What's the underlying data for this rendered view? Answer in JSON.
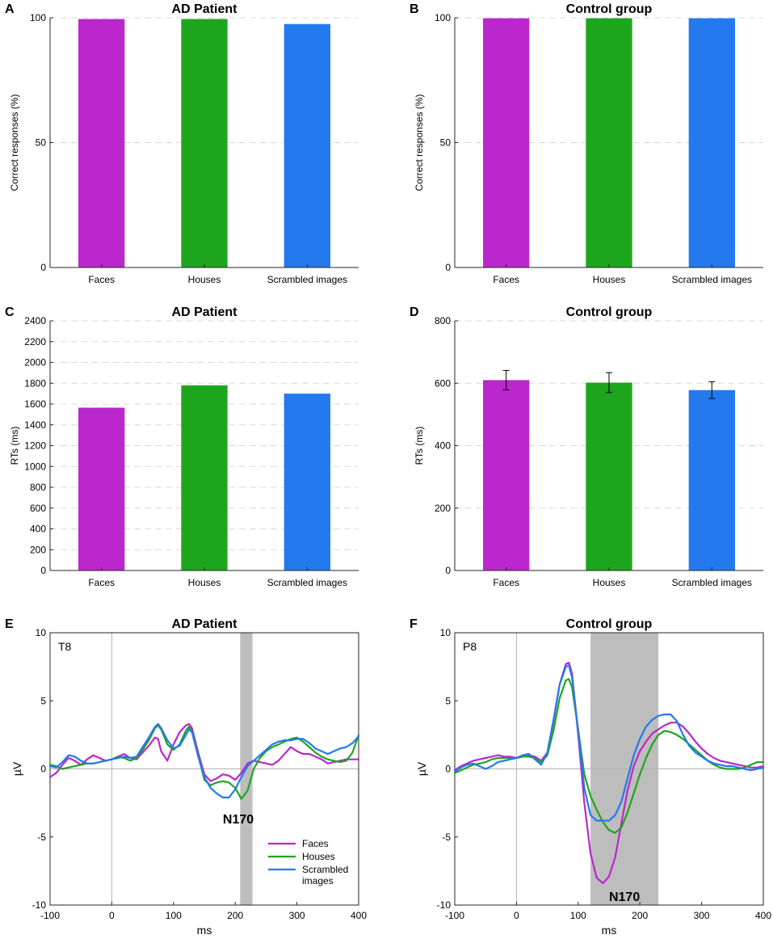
{
  "colors": {
    "faces": "#bb27cc",
    "houses": "#1ea51e",
    "scrambled": "#2479ef",
    "shade": "#bdbdbd"
  },
  "chart_data": [
    {
      "id": "A",
      "type": "bar",
      "letter": "A",
      "title": "AD Patient",
      "ylabel": "Correct responses (%)",
      "xlabel": "",
      "ylim": [
        0,
        100
      ],
      "yticks": [
        0,
        50,
        100
      ],
      "categories": [
        "Faces",
        "Houses",
        "Scrambled images"
      ],
      "values": [
        99.5,
        99.5,
        97.5
      ],
      "grid": true
    },
    {
      "id": "B",
      "type": "bar",
      "letter": "B",
      "title": "Control group",
      "ylabel": "Correct responses (%)",
      "xlabel": "",
      "ylim": [
        0,
        100
      ],
      "yticks": [
        0,
        50,
        100
      ],
      "categories": [
        "Faces",
        "Houses",
        "Scrambled images"
      ],
      "values": [
        99.8,
        99.8,
        99.8
      ],
      "grid": true
    },
    {
      "id": "C",
      "type": "bar",
      "letter": "C",
      "title": "AD Patient",
      "ylabel": "RTs (ms)",
      "xlabel": "",
      "ylim": [
        0,
        2400
      ],
      "yticks": [
        0,
        200,
        400,
        600,
        800,
        1000,
        1200,
        1400,
        1600,
        1800,
        2000,
        2200,
        2400
      ],
      "categories": [
        "Faces",
        "Houses",
        "Scrambled images"
      ],
      "values": [
        1565,
        1780,
        1700
      ],
      "grid": true
    },
    {
      "id": "D",
      "type": "bar",
      "letter": "D",
      "title": "Control group",
      "ylabel": "RTs (ms)",
      "xlabel": "",
      "ylim": [
        0,
        800
      ],
      "yticks": [
        0,
        200,
        400,
        600,
        800
      ],
      "categories": [
        "Faces",
        "Houses",
        "Scrambled images"
      ],
      "values": [
        610,
        602,
        578
      ],
      "errors": [
        31,
        32,
        27
      ],
      "grid": true
    },
    {
      "id": "E",
      "type": "line",
      "letter": "E",
      "title": "AD Patient",
      "channel": "T8",
      "annotation": "N170",
      "xlabel": "ms",
      "ylabel": "µV",
      "xlim": [
        -100,
        400
      ],
      "ylim": [
        -10,
        10
      ],
      "xticks": [
        -100,
        0,
        100,
        200,
        300,
        400
      ],
      "yticks": [
        -10,
        -5,
        0,
        5,
        10
      ],
      "shade": [
        208,
        228
      ],
      "legend": {
        "position": "bottom-center",
        "labels": {
          "faces": "Faces",
          "houses": "Houses",
          "scrambled_line1": "Scrambled",
          "scrambled_line2": "images"
        }
      },
      "series": [
        {
          "name": "Faces",
          "key": "faces",
          "x": [
            -100,
            -90,
            -80,
            -70,
            -60,
            -50,
            -40,
            -30,
            -20,
            -10,
            0,
            10,
            20,
            30,
            40,
            50,
            60,
            70,
            75,
            80,
            90,
            100,
            110,
            120,
            125,
            130,
            140,
            150,
            160,
            170,
            180,
            190,
            200,
            210,
            220,
            230,
            240,
            250,
            260,
            270,
            280,
            290,
            300,
            310,
            320,
            330,
            340,
            350,
            360,
            370,
            380,
            390,
            400
          ],
          "y": [
            -0.6,
            -0.3,
            0.3,
            0.8,
            0.6,
            0.3,
            0.7,
            1.0,
            0.8,
            0.6,
            0.7,
            0.9,
            1.1,
            0.8,
            0.7,
            1.2,
            1.7,
            2.3,
            2.2,
            1.3,
            0.6,
            1.8,
            2.7,
            3.2,
            3.3,
            3.0,
            1.2,
            -0.4,
            -0.9,
            -0.7,
            -0.4,
            -0.5,
            -0.8,
            -0.3,
            0.4,
            0.6,
            0.5,
            0.4,
            0.3,
            0.6,
            1.1,
            1.6,
            1.3,
            1.1,
            1.1,
            0.9,
            0.7,
            0.4,
            0.5,
            0.6,
            0.7,
            0.7,
            0.7
          ]
        },
        {
          "name": "Houses",
          "key": "houses",
          "x": [
            -100,
            -90,
            -80,
            -70,
            -60,
            -50,
            -40,
            -30,
            -20,
            -10,
            0,
            10,
            20,
            30,
            40,
            50,
            60,
            70,
            75,
            80,
            90,
            100,
            110,
            120,
            125,
            130,
            140,
            150,
            160,
            170,
            180,
            190,
            200,
            210,
            220,
            230,
            240,
            250,
            260,
            270,
            280,
            290,
            300,
            310,
            320,
            330,
            340,
            350,
            360,
            370,
            380,
            390,
            400
          ],
          "y": [
            0.3,
            0.2,
            0.0,
            0.1,
            0.2,
            0.3,
            0.4,
            0.4,
            0.5,
            0.6,
            0.7,
            0.9,
            0.8,
            0.6,
            0.8,
            1.4,
            2.1,
            3.0,
            3.2,
            2.9,
            1.8,
            1.4,
            1.8,
            2.8,
            3.1,
            2.8,
            1.0,
            -0.8,
            -1.2,
            -1.0,
            -0.9,
            -1.0,
            -1.4,
            -2.2,
            -1.6,
            0.0,
            0.8,
            1.3,
            1.6,
            1.8,
            2.0,
            2.2,
            2.3,
            2.0,
            1.6,
            1.2,
            0.9,
            0.7,
            0.6,
            0.5,
            0.6,
            1.2,
            2.5
          ]
        },
        {
          "name": "Scrambled images",
          "key": "scrambled",
          "x": [
            -100,
            -90,
            -80,
            -70,
            -60,
            -50,
            -40,
            -30,
            -20,
            -10,
            0,
            10,
            20,
            30,
            40,
            50,
            60,
            70,
            75,
            80,
            90,
            100,
            110,
            120,
            125,
            130,
            140,
            150,
            160,
            170,
            180,
            190,
            200,
            210,
            220,
            230,
            240,
            250,
            260,
            270,
            280,
            290,
            300,
            310,
            320,
            330,
            340,
            350,
            360,
            370,
            380,
            390,
            400
          ],
          "y": [
            0.2,
            0.1,
            0.5,
            1.0,
            0.9,
            0.6,
            0.4,
            0.4,
            0.5,
            0.6,
            0.7,
            0.8,
            0.9,
            0.8,
            0.9,
            1.6,
            2.3,
            3.1,
            3.3,
            3.0,
            2.1,
            1.5,
            1.7,
            2.5,
            2.9,
            2.7,
            0.9,
            -0.6,
            -1.4,
            -1.8,
            -2.1,
            -2.1,
            -1.5,
            -0.6,
            0.2,
            0.6,
            1.0,
            1.4,
            1.8,
            2.0,
            2.1,
            2.1,
            2.2,
            2.2,
            1.9,
            1.5,
            1.3,
            1.1,
            1.3,
            1.5,
            1.6,
            1.9,
            2.4
          ]
        }
      ]
    },
    {
      "id": "F",
      "type": "line",
      "letter": "F",
      "title": "Control group",
      "channel": "P8",
      "annotation": "N170",
      "xlabel": "ms",
      "ylabel": "µV",
      "xlim": [
        -100,
        400
      ],
      "ylim": [
        -10,
        10
      ],
      "xticks": [
        -100,
        0,
        100,
        200,
        300,
        400
      ],
      "yticks": [
        -10,
        -5,
        0,
        5,
        10
      ],
      "shade": [
        120,
        230
      ],
      "series": [
        {
          "name": "Faces",
          "key": "faces",
          "x": [
            -100,
            -90,
            -80,
            -70,
            -60,
            -50,
            -40,
            -30,
            -20,
            -10,
            0,
            10,
            20,
            30,
            40,
            50,
            60,
            70,
            80,
            85,
            90,
            100,
            110,
            120,
            130,
            140,
            150,
            160,
            170,
            180,
            190,
            200,
            210,
            220,
            230,
            240,
            250,
            260,
            270,
            280,
            290,
            300,
            310,
            320,
            330,
            340,
            350,
            360,
            370,
            380,
            390,
            400
          ],
          "y": [
            -0.1,
            0.2,
            0.4,
            0.6,
            0.7,
            0.8,
            0.9,
            1.0,
            0.9,
            0.9,
            0.8,
            0.9,
            1.0,
            0.9,
            0.6,
            1.2,
            3.5,
            6.2,
            7.7,
            7.8,
            7.0,
            2.5,
            -2.5,
            -6.2,
            -8.0,
            -8.4,
            -7.9,
            -6.5,
            -4.0,
            -1.6,
            0.2,
            1.3,
            2.0,
            2.6,
            2.9,
            3.2,
            3.4,
            3.4,
            3.1,
            2.6,
            2.0,
            1.5,
            1.1,
            0.8,
            0.6,
            0.5,
            0.4,
            0.3,
            0.2,
            0.1,
            0.1,
            0.2
          ]
        },
        {
          "name": "Houses",
          "key": "houses",
          "x": [
            -100,
            -90,
            -80,
            -70,
            -60,
            -50,
            -40,
            -30,
            -20,
            -10,
            0,
            10,
            20,
            30,
            40,
            50,
            60,
            70,
            80,
            85,
            90,
            100,
            110,
            120,
            130,
            140,
            150,
            160,
            170,
            180,
            190,
            200,
            210,
            220,
            230,
            240,
            250,
            260,
            270,
            280,
            290,
            300,
            310,
            320,
            330,
            340,
            350,
            360,
            370,
            380,
            390,
            400
          ],
          "y": [
            -0.3,
            -0.1,
            0.1,
            0.3,
            0.4,
            0.5,
            0.7,
            0.8,
            0.8,
            0.8,
            0.8,
            0.9,
            0.9,
            0.8,
            0.5,
            1.0,
            2.8,
            5.2,
            6.5,
            6.6,
            6.0,
            2.9,
            -0.4,
            -2.0,
            -3.0,
            -3.9,
            -4.5,
            -4.7,
            -4.3,
            -3.2,
            -1.8,
            -0.4,
            0.8,
            1.8,
            2.5,
            2.8,
            2.7,
            2.5,
            2.2,
            1.8,
            1.4,
            1.0,
            0.6,
            0.3,
            0.1,
            0.0,
            0.0,
            0.0,
            0.1,
            0.3,
            0.5,
            0.5
          ]
        },
        {
          "name": "Scrambled images",
          "key": "scrambled",
          "x": [
            -100,
            -90,
            -80,
            -70,
            -60,
            -50,
            -40,
            -30,
            -20,
            -10,
            0,
            10,
            20,
            30,
            40,
            50,
            60,
            70,
            80,
            85,
            90,
            100,
            110,
            120,
            130,
            140,
            150,
            160,
            170,
            180,
            190,
            200,
            210,
            220,
            230,
            240,
            250,
            260,
            270,
            280,
            290,
            300,
            310,
            320,
            330,
            340,
            350,
            360,
            370,
            380,
            390,
            400
          ],
          "y": [
            -0.2,
            0.1,
            0.3,
            0.4,
            0.2,
            0.0,
            0.2,
            0.5,
            0.6,
            0.7,
            0.8,
            1.0,
            1.1,
            0.7,
            0.3,
            1.2,
            3.6,
            6.2,
            7.5,
            7.6,
            6.7,
            2.8,
            -1.4,
            -3.4,
            -3.8,
            -3.8,
            -3.8,
            -3.4,
            -2.4,
            -0.7,
            1.0,
            2.2,
            3.1,
            3.6,
            3.9,
            4.0,
            4.0,
            3.5,
            2.5,
            1.7,
            1.2,
            0.9,
            0.6,
            0.4,
            0.3,
            0.2,
            0.2,
            0.1,
            0.0,
            -0.1,
            0.0,
            0.1
          ]
        }
      ]
    }
  ]
}
